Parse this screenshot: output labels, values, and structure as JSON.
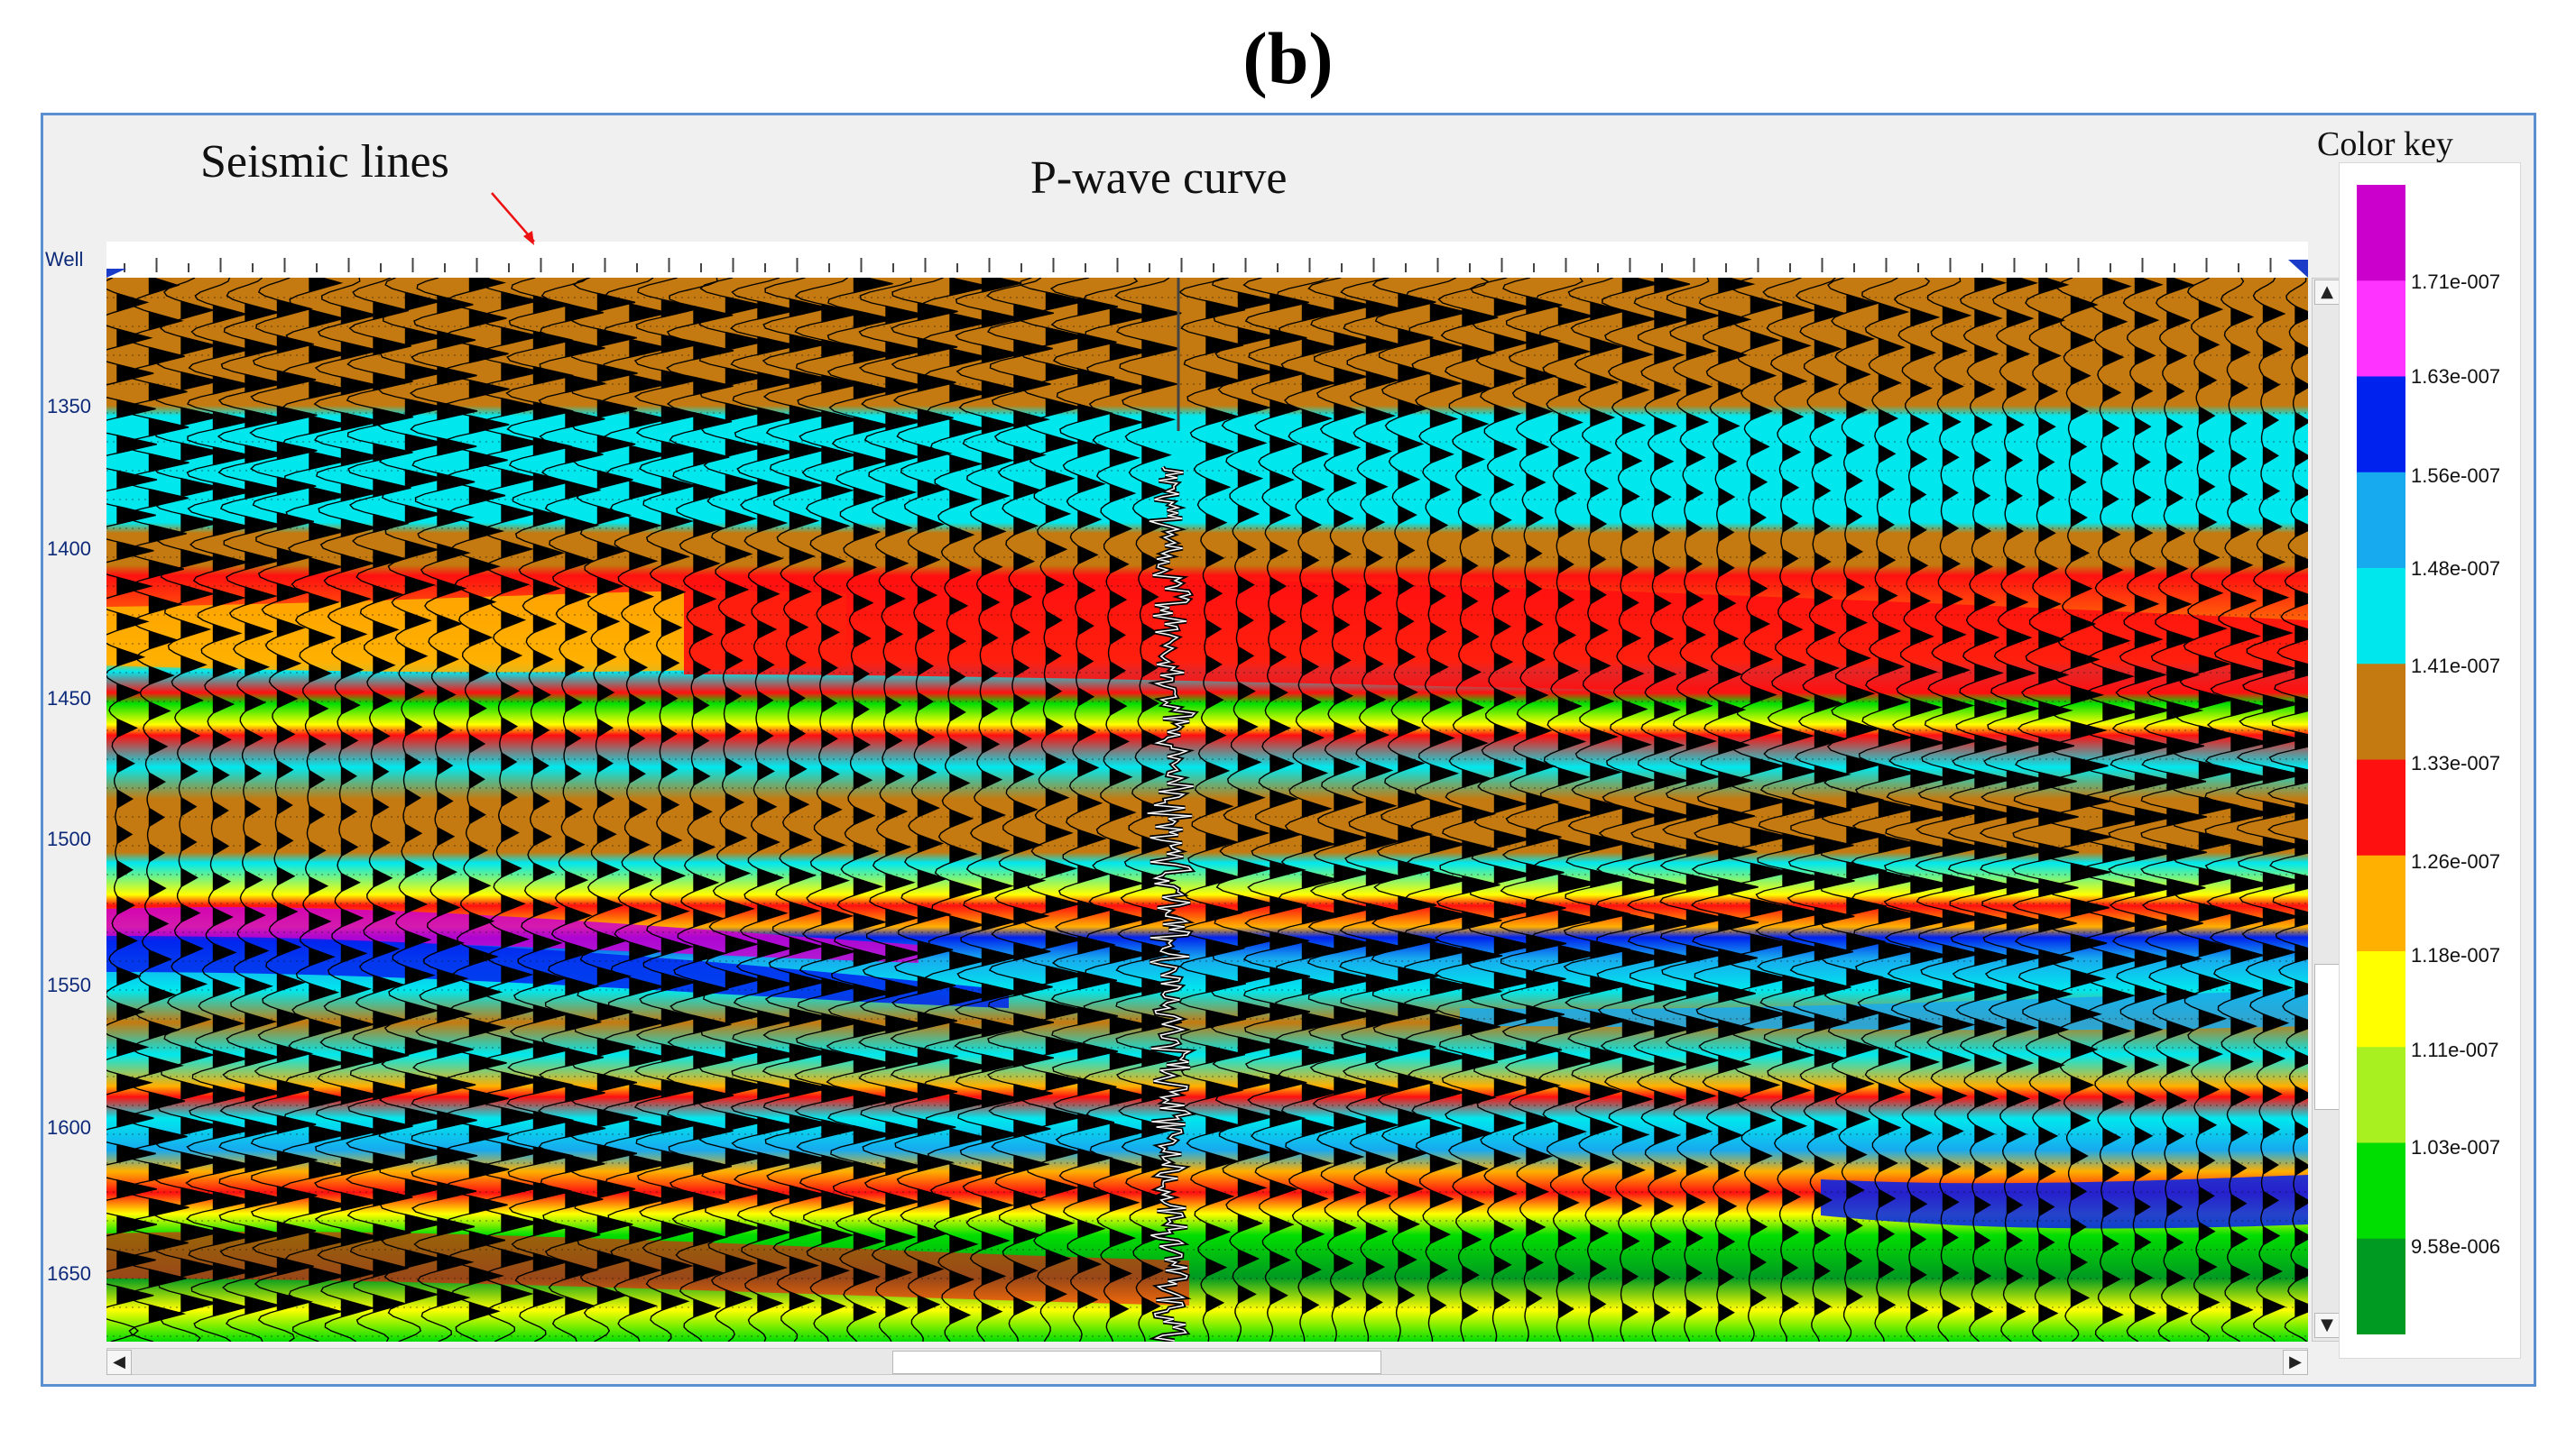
{
  "figure_label": "(b)",
  "annotations": {
    "seismic_lines": "Seismic lines",
    "p_wave": "P-wave curve"
  },
  "axis": {
    "well_label": "Well",
    "depth_ticks": [
      "1350",
      "1400",
      "1450",
      "1500",
      "1550",
      "1600",
      "1650"
    ]
  },
  "color_key": {
    "title": "Color key",
    "labels": [
      "1.71e-007",
      "1.63e-007",
      "1.56e-007",
      "1.48e-007",
      "1.41e-007",
      "1.33e-007",
      "1.26e-007",
      "1.18e-007",
      "1.11e-007",
      "1.03e-007",
      "9.58e-006"
    ],
    "swatches": [
      "#cc00cc",
      "#ff33ff",
      "#0022ee",
      "#18aaee",
      "#00e8ee",
      "#c47a10",
      "#ff1010",
      "#ffb000",
      "#ffff00",
      "#a8f020",
      "#00dd00",
      "#009922"
    ]
  },
  "scrollbars": {
    "up": "▲",
    "down": "▼",
    "left": "◀",
    "right": "▶"
  }
}
